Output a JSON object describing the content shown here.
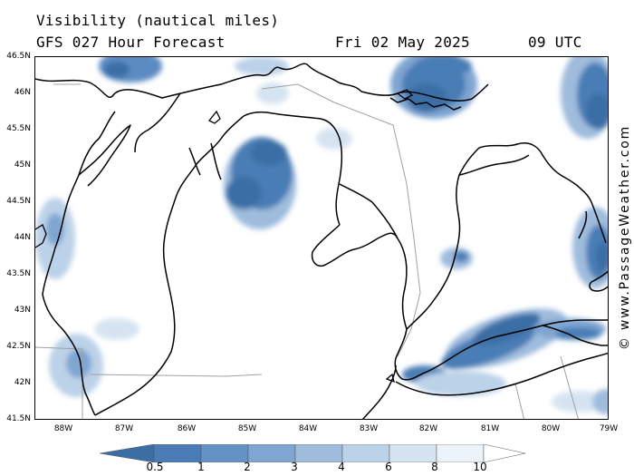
{
  "header": {
    "title": "Visibility (nautical miles)",
    "subtitle": "GFS 027 Hour Forecast",
    "date": "Fri 02 May 2025",
    "time": "09 UTC"
  },
  "watermark": "© www.PassageWeather.com",
  "map": {
    "lat_labels": [
      "46.5N",
      "46N",
      "45.5N",
      "45N",
      "44.5N",
      "44N",
      "43.5N",
      "43N",
      "42.5N",
      "42N",
      "41.5N"
    ],
    "lon_labels": [
      "88W",
      "87W",
      "86W",
      "85W",
      "84W",
      "83W",
      "82W",
      "81W",
      "80W",
      "79W"
    ],
    "extent": {
      "lon_min": -88.5,
      "lon_max": -79,
      "lat_min": 41.5,
      "lat_max": 46.5
    }
  },
  "legend": {
    "ticks": [
      "0.5",
      "1",
      "2",
      "3",
      "4",
      "6",
      "8",
      "10"
    ],
    "colors": [
      "#3a6ea5",
      "#4a7db5",
      "#6592c4",
      "#7fa5d1",
      "#9fbcdd",
      "#bcd2e8",
      "#d6e4f2",
      "#edf3fa",
      "#ffffff"
    ]
  }
}
